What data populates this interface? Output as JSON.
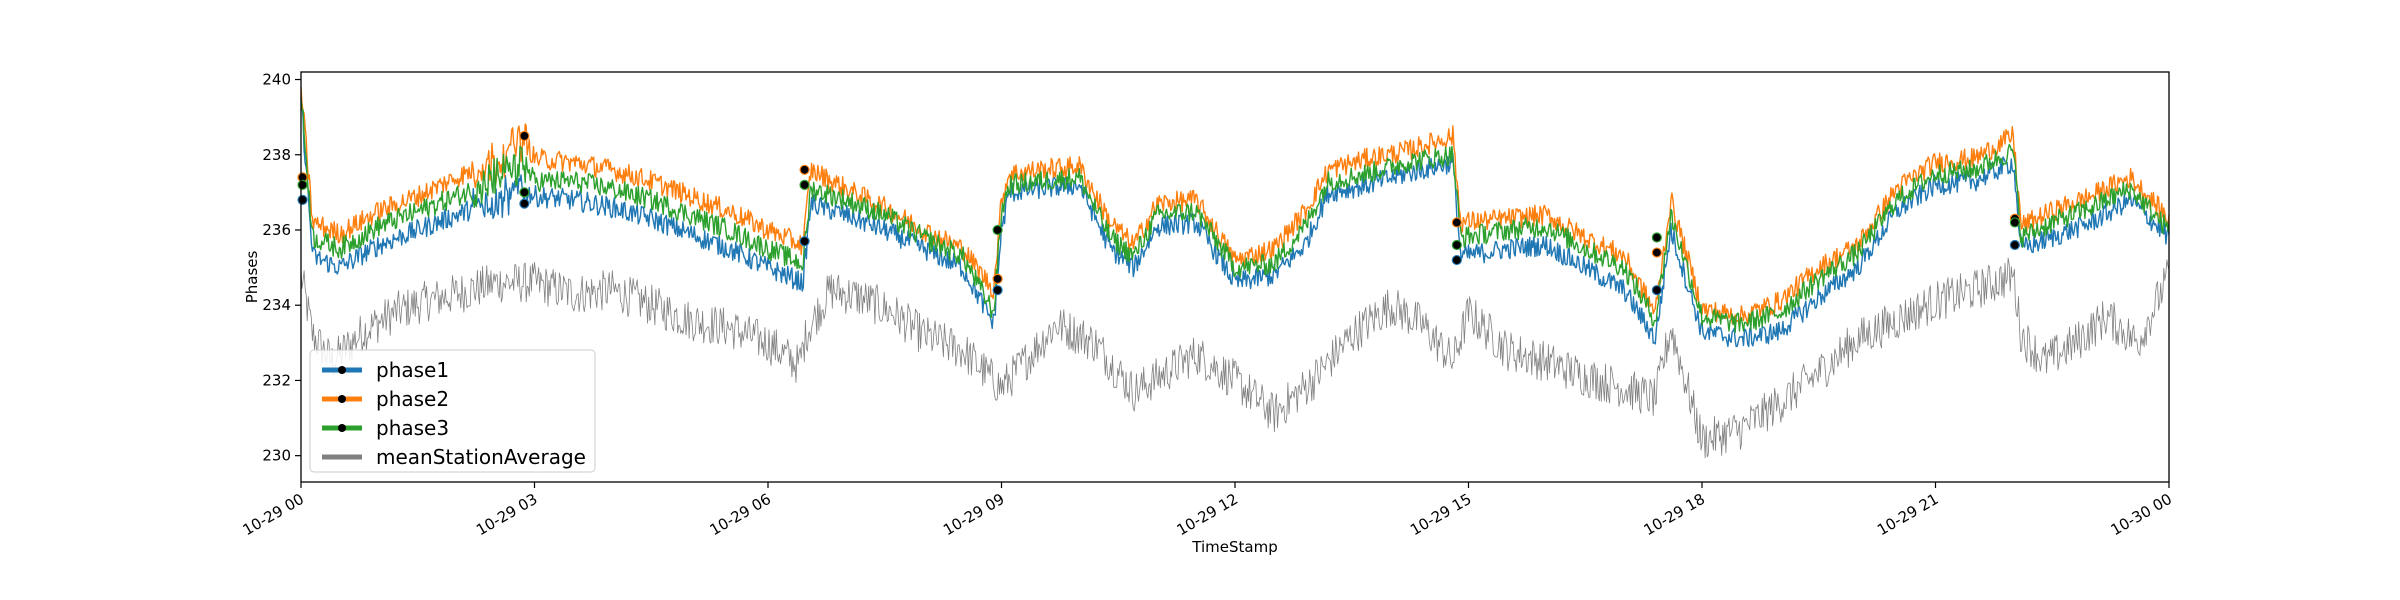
{
  "chart_data": {
    "type": "line",
    "title": "",
    "xlabel": "TimeStamp",
    "ylabel": "Phases",
    "x_range": [
      "2023-10-29 00:00",
      "2023-10-30 00:00"
    ],
    "x_ticks": [
      {
        "value": 0,
        "label": "10-29 00"
      },
      {
        "value": 3,
        "label": "10-29 03"
      },
      {
        "value": 6,
        "label": "10-29 06"
      },
      {
        "value": 9,
        "label": "10-29 09"
      },
      {
        "value": 12,
        "label": "10-29 12"
      },
      {
        "value": 15,
        "label": "10-29 15"
      },
      {
        "value": 18,
        "label": "10-29 18"
      },
      {
        "value": 21,
        "label": "10-29 21"
      },
      {
        "value": 24,
        "label": "10-30 00"
      }
    ],
    "ylim": [
      229.3,
      240.2
    ],
    "y_ticks": [
      230,
      232,
      234,
      236,
      238,
      240
    ],
    "grid": false,
    "legend_position": "lower-left",
    "series": [
      {
        "name": "phase1",
        "color": "#1f77b4",
        "x": [
          0.0,
          0.15,
          0.5,
          1.0,
          1.5,
          2.0,
          2.5,
          2.85,
          3.0,
          3.5,
          4.0,
          4.5,
          5.0,
          5.5,
          6.0,
          6.45,
          6.55,
          7.0,
          7.5,
          8.0,
          8.5,
          8.9,
          9.0,
          9.1,
          9.5,
          10.0,
          10.4,
          10.7,
          11.0,
          11.5,
          12.0,
          12.5,
          12.9,
          13.2,
          13.7,
          14.2,
          14.8,
          14.9,
          15.5,
          16.0,
          16.5,
          17.0,
          17.4,
          17.6,
          18.0,
          18.5,
          19.0,
          19.5,
          20.0,
          20.5,
          21.0,
          21.5,
          22.0,
          22.1,
          22.5,
          23.0,
          23.5,
          24.0
        ],
        "values": [
          239.5,
          235.3,
          235.0,
          235.6,
          236.0,
          236.4,
          236.8,
          237.1,
          236.9,
          236.8,
          236.6,
          236.3,
          235.9,
          235.5,
          235.0,
          234.6,
          236.7,
          236.4,
          236.0,
          235.5,
          235.0,
          233.5,
          236.0,
          237.0,
          237.1,
          237.2,
          235.5,
          235.0,
          236.1,
          236.2,
          234.6,
          234.8,
          235.6,
          237.0,
          237.2,
          237.5,
          237.8,
          235.3,
          235.5,
          235.6,
          235.0,
          234.4,
          233.1,
          236.0,
          233.3,
          233.1,
          233.3,
          234.2,
          235.0,
          236.5,
          237.2,
          237.3,
          237.8,
          235.5,
          235.8,
          236.2,
          236.8,
          235.8
        ]
      },
      {
        "name": "phase2",
        "color": "#ff7f0e",
        "x": [
          0.0,
          0.15,
          0.5,
          1.0,
          1.5,
          2.0,
          2.5,
          2.85,
          3.0,
          3.5,
          4.0,
          4.5,
          5.0,
          5.5,
          6.0,
          6.45,
          6.55,
          7.0,
          7.5,
          8.0,
          8.5,
          8.9,
          9.0,
          9.1,
          9.5,
          10.0,
          10.4,
          10.7,
          11.0,
          11.5,
          12.0,
          12.5,
          12.9,
          13.2,
          13.7,
          14.2,
          14.8,
          14.9,
          15.5,
          16.0,
          16.5,
          17.0,
          17.4,
          17.6,
          18.0,
          18.5,
          19.0,
          19.5,
          20.0,
          20.5,
          21.0,
          21.5,
          22.0,
          22.1,
          22.5,
          23.0,
          23.5,
          24.0
        ],
        "values": [
          239.8,
          236.2,
          235.9,
          236.5,
          236.9,
          237.4,
          237.8,
          238.5,
          237.9,
          237.8,
          237.6,
          237.3,
          236.9,
          236.5,
          236.0,
          235.6,
          237.6,
          237.1,
          236.6,
          236.0,
          235.5,
          234.4,
          236.8,
          237.5,
          237.6,
          237.7,
          236.2,
          235.6,
          236.7,
          236.8,
          235.2,
          235.5,
          236.5,
          237.6,
          237.9,
          238.1,
          238.5,
          236.2,
          236.3,
          236.4,
          235.8,
          235.3,
          233.8,
          236.8,
          233.9,
          233.7,
          234.1,
          235.0,
          235.6,
          237.1,
          237.8,
          237.9,
          238.5,
          236.1,
          236.5,
          236.9,
          237.4,
          236.3
        ]
      },
      {
        "name": "phase3",
        "color": "#2ca02c",
        "x": [
          0.0,
          0.15,
          0.5,
          1.0,
          1.5,
          2.0,
          2.5,
          2.85,
          3.0,
          3.5,
          4.0,
          4.5,
          5.0,
          5.5,
          6.0,
          6.45,
          6.55,
          7.0,
          7.5,
          8.0,
          8.5,
          8.9,
          9.0,
          9.1,
          9.5,
          10.0,
          10.4,
          10.7,
          11.0,
          11.5,
          12.0,
          12.5,
          12.9,
          13.2,
          13.7,
          14.2,
          14.8,
          14.9,
          15.5,
          16.0,
          16.5,
          17.0,
          17.4,
          17.6,
          18.0,
          18.5,
          19.0,
          19.5,
          20.0,
          20.5,
          21.0,
          21.5,
          22.0,
          22.1,
          22.5,
          23.0,
          23.5,
          24.0
        ],
        "values": [
          239.6,
          235.8,
          235.5,
          236.1,
          236.5,
          236.9,
          237.3,
          237.8,
          237.3,
          237.3,
          237.1,
          236.8,
          236.4,
          236.0,
          235.5,
          235.1,
          237.1,
          236.8,
          236.4,
          235.8,
          235.3,
          233.8,
          236.5,
          237.2,
          237.3,
          237.4,
          235.8,
          235.3,
          236.4,
          236.5,
          235.0,
          235.1,
          236.1,
          237.3,
          237.5,
          237.8,
          238.0,
          235.8,
          236.0,
          236.1,
          235.5,
          235.0,
          233.6,
          236.4,
          233.7,
          233.5,
          233.8,
          234.7,
          235.4,
          236.8,
          237.5,
          237.6,
          238.1,
          235.8,
          236.2,
          236.6,
          237.1,
          236.0
        ]
      },
      {
        "name": "meanStationAverage",
        "color": "#808080",
        "x": [
          0.0,
          0.15,
          0.4,
          0.8,
          1.2,
          1.6,
          2.0,
          2.5,
          3.0,
          3.5,
          4.0,
          4.5,
          5.0,
          5.5,
          6.0,
          6.4,
          6.5,
          6.8,
          7.2,
          7.6,
          8.0,
          8.5,
          9.0,
          9.3,
          9.7,
          10.2,
          10.7,
          11.1,
          11.5,
          12.0,
          12.5,
          13.0,
          13.5,
          14.0,
          14.4,
          14.8,
          15.0,
          15.5,
          16.0,
          16.5,
          17.0,
          17.4,
          17.6,
          18.0,
          18.5,
          19.0,
          19.5,
          20.0,
          20.5,
          21.0,
          21.5,
          22.0,
          22.1,
          22.4,
          22.8,
          23.2,
          23.6,
          24.0
        ],
        "values": [
          234.8,
          233.2,
          232.5,
          233.3,
          233.8,
          234.1,
          234.3,
          234.6,
          234.6,
          234.3,
          234.4,
          234.0,
          233.6,
          233.4,
          233.0,
          232.4,
          233.3,
          234.4,
          234.2,
          233.8,
          233.2,
          232.8,
          231.8,
          232.5,
          233.5,
          233.0,
          231.7,
          232.2,
          232.7,
          232.0,
          231.1,
          232.0,
          233.2,
          234.0,
          233.5,
          232.5,
          233.8,
          232.8,
          232.5,
          232.1,
          231.8,
          231.5,
          233.4,
          230.4,
          230.7,
          231.4,
          232.2,
          233.1,
          233.6,
          234.1,
          234.4,
          234.8,
          233.2,
          232.5,
          233.0,
          233.7,
          233.0,
          234.8
        ]
      }
    ],
    "markers": [
      {
        "series": "phase1",
        "x": [
          0.02,
          2.87,
          6.47,
          8.95,
          14.85,
          17.42,
          22.02
        ],
        "values": [
          236.8,
          236.7,
          235.7,
          234.4,
          235.2,
          234.4,
          235.6
        ]
      },
      {
        "series": "phase2",
        "x": [
          0.02,
          2.87,
          6.47,
          8.95,
          14.85,
          17.42,
          22.02
        ],
        "values": [
          237.4,
          238.5,
          237.6,
          234.7,
          236.2,
          235.4,
          236.3
        ]
      },
      {
        "series": "phase3",
        "x": [
          0.02,
          2.87,
          6.47,
          8.95,
          14.85,
          17.42,
          22.02
        ],
        "values": [
          237.2,
          237.0,
          237.2,
          236.0,
          235.6,
          235.8,
          236.2
        ]
      }
    ]
  }
}
